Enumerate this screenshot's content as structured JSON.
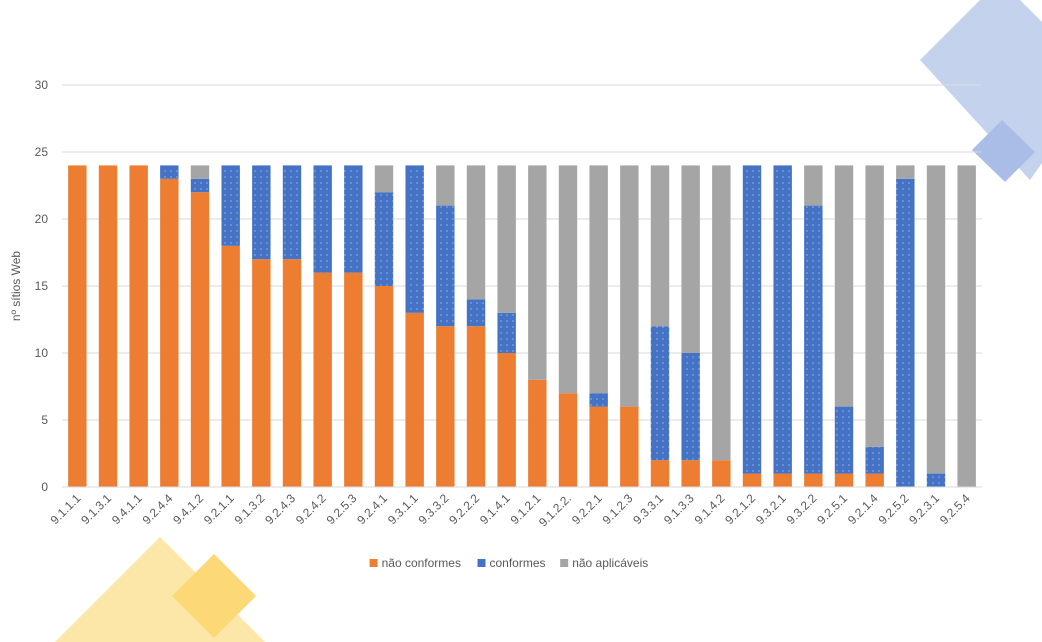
{
  "chart_data": {
    "type": "stacked_bar",
    "y_label": "nº sítios Web",
    "categories": [
      "9.1.1.1",
      "9.1.3.1",
      "9.4.1.1",
      "9.2.4.4",
      "9.4.1.2",
      "9.2.1.1",
      "9.1.3.2",
      "9.2.4.3",
      "9.2.4.2",
      "9.2.5.3",
      "9.2.4.1",
      "9.3.1.1",
      "9.3.3.2",
      "9.2.2.2",
      "9.1.4.1",
      "9.1.2.1",
      "9.1.2.2.",
      "9.2.2.1",
      "9.1.2.3",
      "9.3.3.1",
      "9.1.3.3",
      "9.1.4.2",
      "9.2.1.2",
      "9.3.2.1",
      "9.3.2.2",
      "9.2.5.1",
      "9.2.1.4",
      "9.2.5.2",
      "9.2.3.1",
      "9.2.5.4"
    ],
    "series": [
      {
        "name": "não conformes",
        "color": "#ed7d31",
        "values": [
          24,
          24,
          24,
          23,
          22,
          18,
          17,
          17,
          16,
          16,
          15,
          13,
          12,
          12,
          10,
          8,
          7,
          6,
          6,
          2,
          2,
          2,
          1,
          1,
          1,
          1,
          1,
          0,
          0,
          0
        ]
      },
      {
        "name": "conformes",
        "color": "#4472c4",
        "values": [
          0,
          0,
          0,
          1,
          1,
          6,
          7,
          7,
          8,
          8,
          7,
          11,
          9,
          2,
          3,
          0,
          0,
          1,
          0,
          10,
          8,
          0,
          23,
          23,
          20,
          5,
          2,
          23,
          1,
          0
        ]
      },
      {
        "name": "não aplicáveis",
        "color": "#a5a5a5",
        "values": [
          0,
          0,
          0,
          0,
          1,
          0,
          0,
          0,
          0,
          0,
          2,
          0,
          3,
          10,
          11,
          16,
          17,
          17,
          18,
          12,
          14,
          22,
          0,
          0,
          3,
          18,
          21,
          1,
          23,
          24
        ]
      }
    ],
    "ylim": [
      0,
      30
    ],
    "yticks": [
      0,
      5,
      10,
      15,
      20,
      25,
      30
    ],
    "grid": true,
    "legend": "bottom"
  }
}
